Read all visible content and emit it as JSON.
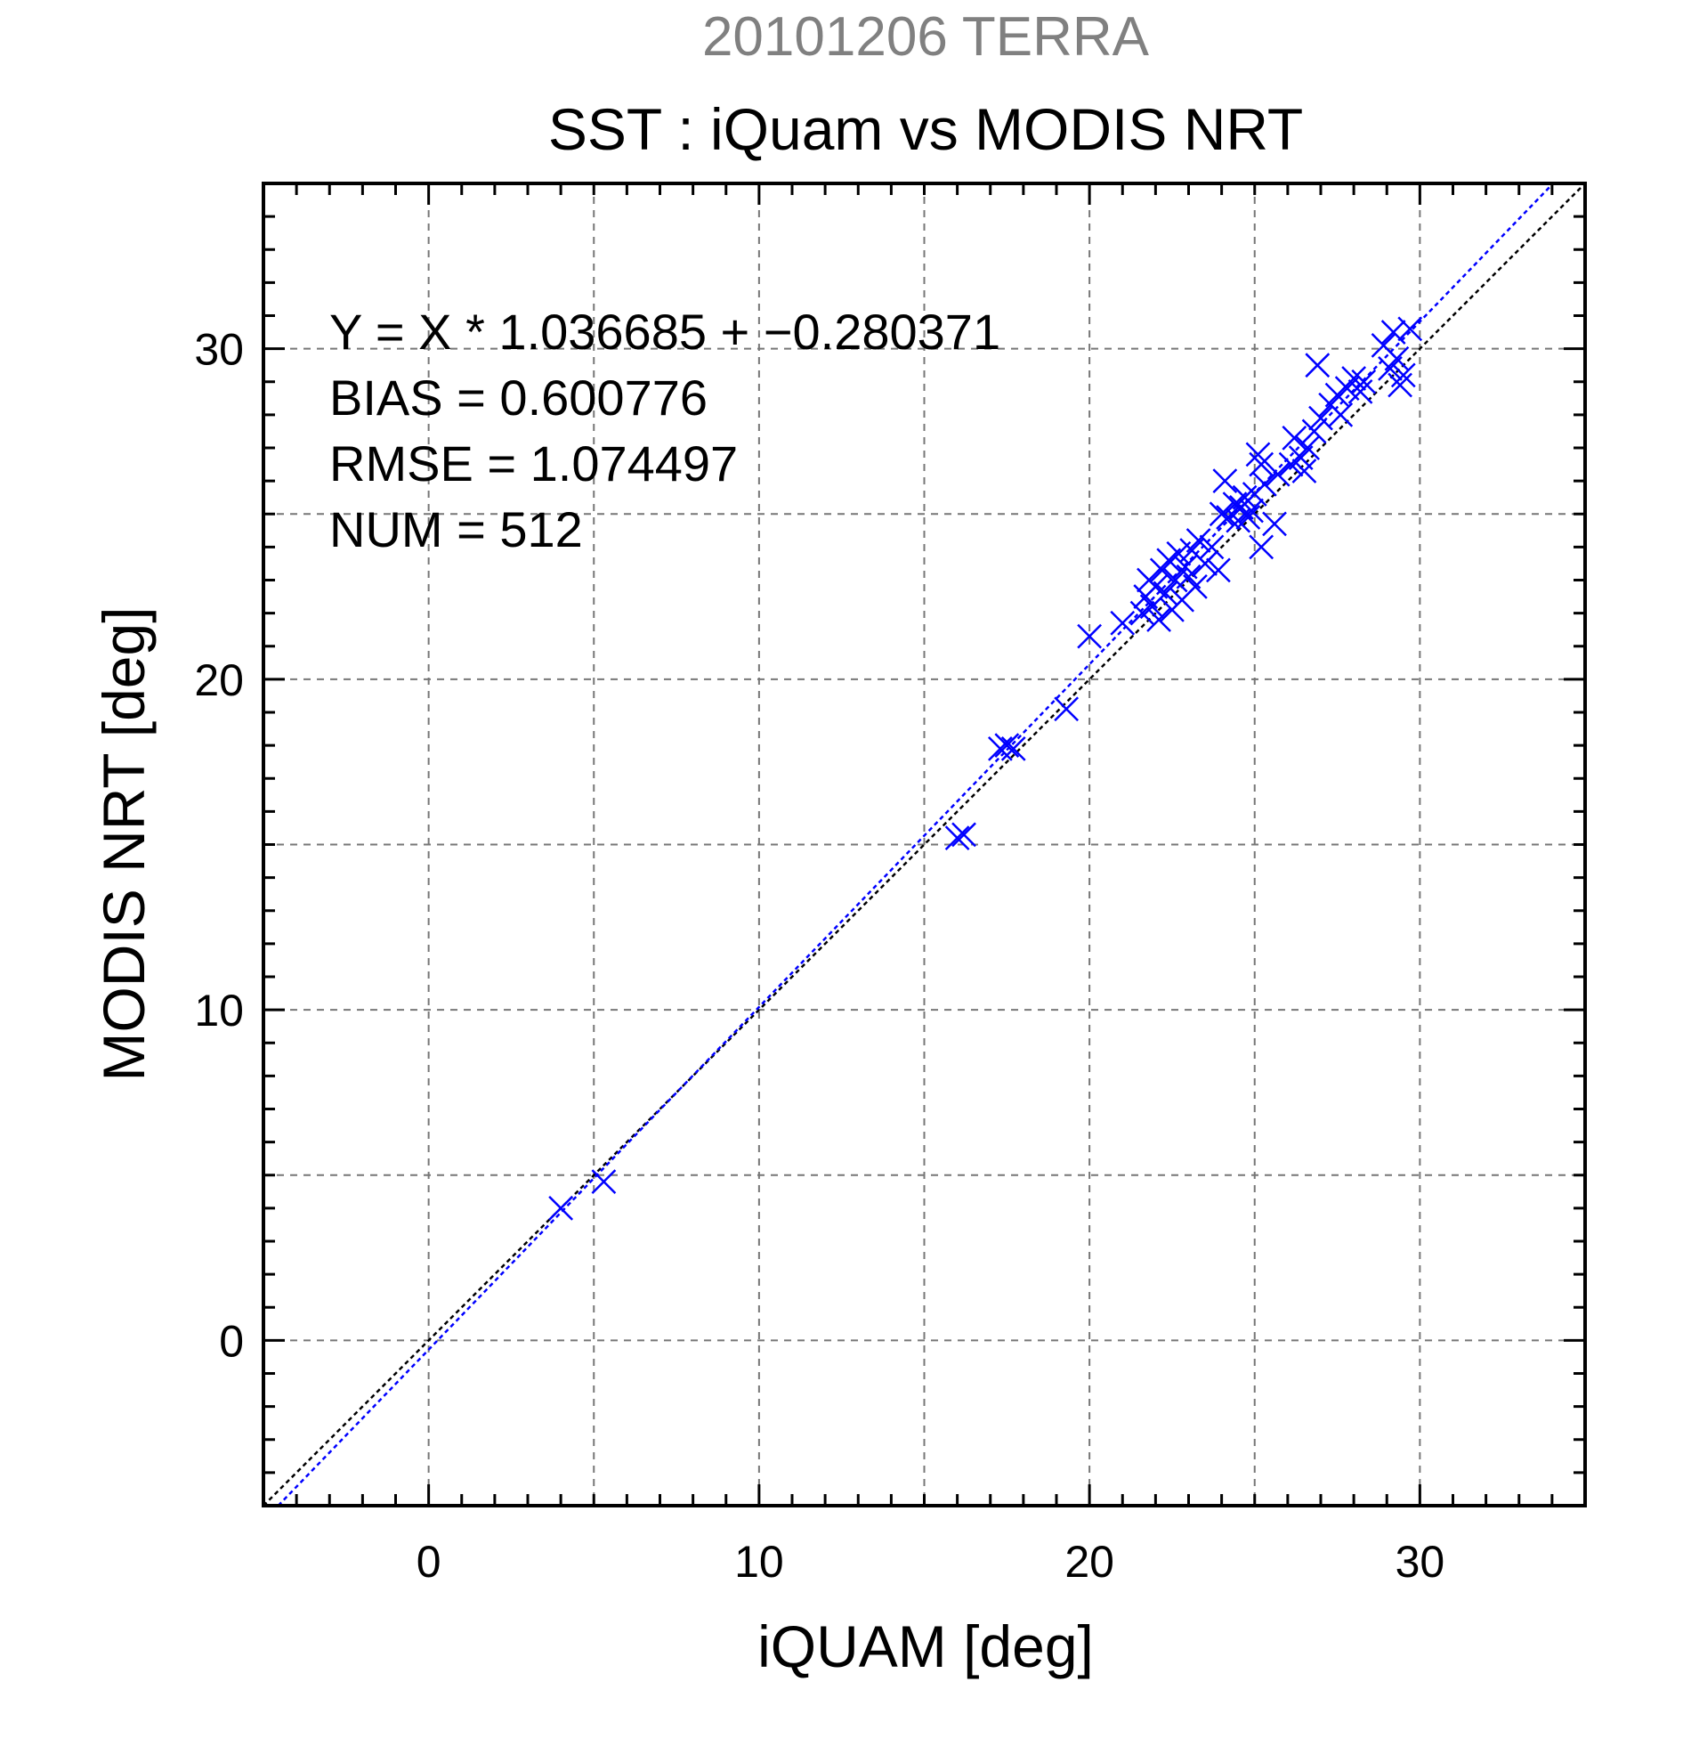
{
  "chart_data": {
    "type": "scatter",
    "supertitle": "20101206 TERRA",
    "title": "SST : iQuam vs MODIS NRT",
    "xlabel": "iQUAM [deg]",
    "ylabel": "MODIS NRT [deg]",
    "xlim": [
      -5,
      35
    ],
    "ylim": [
      -5,
      35
    ],
    "major_ticks": [
      0,
      10,
      20,
      30
    ],
    "minor_tick_step": 1,
    "grid_step": 5,
    "grid": true,
    "marker": "x",
    "colors": {
      "points": "#0000ff",
      "fit_line": "#0000ff",
      "identity_line": "#000000"
    },
    "annotations": [
      "Y = X * 1.036685 + −0.280371",
      "BIAS = 0.600776",
      "RMSE = 1.074497",
      "NUM = 512"
    ],
    "fit_line": {
      "slope": 1.036685,
      "intercept": -0.280371
    },
    "identity_line": {
      "slope": 1,
      "intercept": 0
    },
    "points": [
      [
        4.0,
        4.0
      ],
      [
        5.3,
        4.8
      ],
      [
        16.0,
        15.2
      ],
      [
        16.2,
        15.3
      ],
      [
        17.3,
        17.9
      ],
      [
        17.5,
        18.0
      ],
      [
        17.7,
        17.9
      ],
      [
        19.3,
        19.1
      ],
      [
        20.0,
        21.3
      ],
      [
        21.0,
        21.7
      ],
      [
        21.6,
        22.0
      ],
      [
        21.7,
        22.5
      ],
      [
        21.8,
        23.0
      ],
      [
        21.9,
        22.2
      ],
      [
        22.0,
        22.8
      ],
      [
        22.1,
        21.8
      ],
      [
        22.2,
        23.3
      ],
      [
        22.3,
        22.6
      ],
      [
        22.4,
        23.6
      ],
      [
        22.5,
        22.1
      ],
      [
        22.6,
        23.0
      ],
      [
        22.7,
        23.8
      ],
      [
        22.8,
        22.4
      ],
      [
        22.9,
        23.4
      ],
      [
        23.0,
        23.1
      ],
      [
        23.1,
        23.9
      ],
      [
        23.2,
        22.8
      ],
      [
        23.3,
        24.2
      ],
      [
        23.5,
        23.5
      ],
      [
        23.7,
        24.0
      ],
      [
        23.9,
        23.3
      ],
      [
        24.0,
        25.0
      ],
      [
        24.1,
        26.0
      ],
      [
        24.2,
        24.9
      ],
      [
        24.4,
        25.3
      ],
      [
        24.5,
        24.8
      ],
      [
        24.6,
        25.2
      ],
      [
        24.7,
        25.5
      ],
      [
        24.8,
        24.9
      ],
      [
        24.9,
        25.1
      ],
      [
        25.0,
        25.6
      ],
      [
        25.1,
        26.8
      ],
      [
        25.2,
        26.5
      ],
      [
        25.3,
        25.9
      ],
      [
        25.2,
        24.0
      ],
      [
        25.6,
        24.7
      ],
      [
        25.7,
        26.2
      ],
      [
        26.1,
        26.5
      ],
      [
        26.2,
        27.3
      ],
      [
        26.4,
        26.7
      ],
      [
        26.5,
        26.3
      ],
      [
        26.6,
        27.0
      ],
      [
        26.8,
        27.5
      ],
      [
        26.9,
        29.5
      ],
      [
        27.0,
        27.9
      ],
      [
        27.3,
        28.3
      ],
      [
        27.5,
        28.6
      ],
      [
        27.6,
        28.0
      ],
      [
        27.8,
        28.8
      ],
      [
        28.0,
        29.1
      ],
      [
        28.2,
        28.7
      ],
      [
        28.3,
        29.0
      ],
      [
        28.9,
        30.1
      ],
      [
        29.1,
        29.4
      ],
      [
        29.2,
        30.5
      ],
      [
        29.3,
        29.7
      ],
      [
        29.4,
        28.9
      ],
      [
        29.5,
        29.2
      ],
      [
        29.7,
        30.6
      ]
    ]
  }
}
